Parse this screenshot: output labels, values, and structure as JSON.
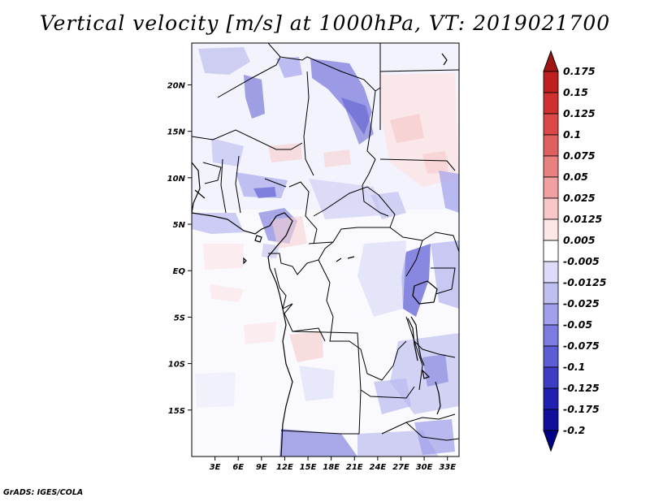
{
  "title": "Vertical velocity [m/s] at 1000hPa, VT: 2019021700",
  "credit": "GrADS: IGES/COLA",
  "map": {
    "lon_range": [
      0,
      34.5
    ],
    "lat_range": [
      -20,
      24.5
    ],
    "lat_ticks": [
      {
        "value": 20,
        "label": "20N"
      },
      {
        "value": 15,
        "label": "15N"
      },
      {
        "value": 10,
        "label": "10N"
      },
      {
        "value": 5,
        "label": "5N"
      },
      {
        "value": 0,
        "label": "EQ"
      },
      {
        "value": -5,
        "label": "5S"
      },
      {
        "value": -10,
        "label": "10S"
      },
      {
        "value": -15,
        "label": "15S"
      }
    ],
    "lon_ticks": [
      {
        "value": 3,
        "label": "3E"
      },
      {
        "value": 6,
        "label": "6E"
      },
      {
        "value": 9,
        "label": "9E"
      },
      {
        "value": 12,
        "label": "12E"
      },
      {
        "value": 15,
        "label": "15E"
      },
      {
        "value": 18,
        "label": "18E"
      },
      {
        "value": 21,
        "label": "21E"
      },
      {
        "value": 24,
        "label": "24E"
      },
      {
        "value": 27,
        "label": "27E"
      },
      {
        "value": 30,
        "label": "30E"
      },
      {
        "value": 33,
        "label": "33E"
      }
    ]
  },
  "colorbar": {
    "levels": [
      "0.175",
      "0.15",
      "0.125",
      "0.1",
      "0.075",
      "0.05",
      "0.025",
      "0.0125",
      "0.005",
      "-0.005",
      "-0.0125",
      "-0.025",
      "-0.05",
      "-0.075",
      "-0.1",
      "-0.125",
      "-0.175",
      "-0.2"
    ],
    "colors": [
      "#a01414",
      "#be2020",
      "#d03030",
      "#dc4848",
      "#e06060",
      "#e88080",
      "#f0a0a0",
      "#f8c8c8",
      "#fce6e6",
      "#ffffff",
      "#dcdcf8",
      "#c0c0f0",
      "#a0a0ec",
      "#7c7ce0",
      "#5c5cd4",
      "#3c3cc4",
      "#2020b0",
      "#10109c",
      "#000088"
    ]
  }
}
